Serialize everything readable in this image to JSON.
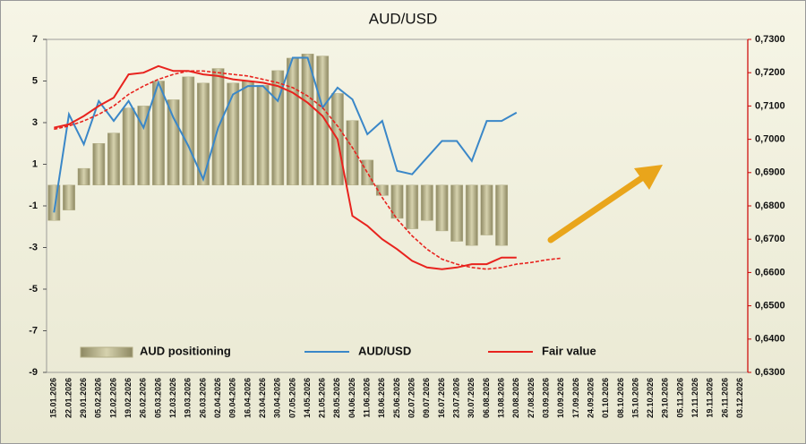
{
  "chart_data": {
    "type": "combo",
    "title": "AUD/USD",
    "categories": [
      "15.01.2026",
      "22.01.2026",
      "29.01.2026",
      "05.02.2026",
      "12.02.2026",
      "19.02.2026",
      "26.02.2026",
      "05.03.2026",
      "12.03.2026",
      "19.03.2026",
      "26.03.2026",
      "02.04.2026",
      "09.04.2026",
      "16.04.2026",
      "23.04.2026",
      "30.04.2026",
      "07.05.2026",
      "14.05.2026",
      "21.05.2026",
      "28.05.2026",
      "04.06.2026",
      "11.06.2026",
      "18.06.2026",
      "25.06.2026",
      "02.07.2026",
      "09.07.2026",
      "16.07.2026",
      "23.07.2026",
      "30.07.2026",
      "06.08.2026",
      "13.08.2026",
      "20.08.2026",
      "27.08.2026",
      "03.09.2026",
      "10.09.2026",
      "17.09.2026",
      "24.09.2026",
      "01.10.2026",
      "08.10.2026",
      "15.10.2026",
      "22.10.2026",
      "29.10.2026",
      "05.11.2026",
      "12.11.2026",
      "19.11.2026",
      "26.11.2026",
      "03.12.2026"
    ],
    "series": [
      {
        "name": "AUD positioning",
        "type": "bar",
        "color": "#b3ae86",
        "axis": "y",
        "values": [
          -1.7,
          -1.2,
          0.8,
          2.0,
          2.5,
          3.7,
          3.8,
          5.0,
          4.1,
          5.2,
          4.9,
          5.6,
          4.9,
          5.0,
          4.8,
          5.5,
          6.1,
          6.3,
          6.2,
          4.4,
          3.1,
          1.2,
          -0.5,
          -1.6,
          -2.1,
          -1.7,
          -2.2,
          -2.7,
          -2.9,
          -2.4,
          -2.9,
          null,
          null,
          null,
          null,
          null,
          null,
          null,
          null,
          null,
          null,
          null,
          null,
          null,
          null,
          null,
          null
        ]
      },
      {
        "name": "AUD/USD",
        "type": "line",
        "color": "#3a87c8",
        "axis": "y2",
        "values": [
          0.678,
          0.7075,
          0.6985,
          0.7115,
          0.7055,
          0.7115,
          0.7035,
          0.717,
          0.7065,
          0.698,
          0.688,
          0.7035,
          0.7135,
          0.716,
          0.716,
          0.7115,
          0.7245,
          0.7245,
          0.7095,
          0.7155,
          0.712,
          0.7015,
          0.7055,
          0.6905,
          0.6895,
          0.6945,
          0.6995,
          0.6995,
          0.6935,
          0.7055,
          0.7055,
          0.708,
          null,
          null,
          null,
          null,
          null,
          null,
          null,
          null,
          null,
          null,
          null,
          null,
          null,
          null,
          null
        ]
      },
      {
        "name": "Fair value",
        "type": "line",
        "color": "#e8231e",
        "axis": "y2",
        "values": [
          0.7035,
          0.7045,
          0.707,
          0.71,
          0.7125,
          0.7195,
          0.72,
          0.722,
          0.7205,
          0.7205,
          0.7195,
          0.719,
          0.718,
          0.7175,
          0.717,
          0.716,
          0.714,
          0.711,
          0.707,
          0.7,
          0.677,
          0.674,
          0.67,
          0.667,
          0.6635,
          0.6615,
          0.661,
          0.6615,
          0.6625,
          0.6625,
          0.6645,
          0.6645,
          null,
          null,
          null,
          null,
          null,
          null,
          null,
          null,
          null,
          null,
          null,
          null,
          null,
          null,
          null
        ]
      },
      {
        "type": "line",
        "color": "#e8231e",
        "axis": "y2",
        "dashed": true,
        "values": [
          0.703,
          0.704,
          0.7055,
          0.7075,
          0.71,
          0.7135,
          0.716,
          0.718,
          0.7195,
          0.7205,
          0.7205,
          0.72,
          0.7195,
          0.719,
          0.718,
          0.717,
          0.7155,
          0.713,
          0.7095,
          0.704,
          0.6975,
          0.69,
          0.6825,
          0.676,
          0.671,
          0.667,
          0.664,
          0.6625,
          0.6615,
          0.661,
          0.6615,
          0.6625,
          0.663,
          0.6638,
          0.6643,
          null,
          null,
          null,
          null,
          null,
          null,
          null,
          null,
          null,
          null,
          null,
          null
        ]
      }
    ],
    "ylim": [
      -9,
      7
    ],
    "yticks": [
      -9,
      -7,
      -5,
      -3,
      -1,
      1,
      3,
      5,
      7
    ],
    "y2lim": [
      0.63,
      0.73
    ],
    "y2ticks": [
      {
        "value": 0.63,
        "label": "0,6300"
      },
      {
        "value": 0.64,
        "label": "0,6400"
      },
      {
        "value": 0.65,
        "label": "0,6500"
      },
      {
        "value": 0.66,
        "label": "0,6600"
      },
      {
        "value": 0.67,
        "label": "0,6700"
      },
      {
        "value": 0.68,
        "label": "0,6800"
      },
      {
        "value": 0.69,
        "label": "0,6900"
      },
      {
        "value": 0.7,
        "label": "0,7000"
      },
      {
        "value": 0.71,
        "label": "0,7100"
      },
      {
        "value": 0.72,
        "label": "0,7200"
      },
      {
        "value": 0.73,
        "label": "0,7300"
      }
    ],
    "grid": false,
    "legend": "bottom"
  }
}
